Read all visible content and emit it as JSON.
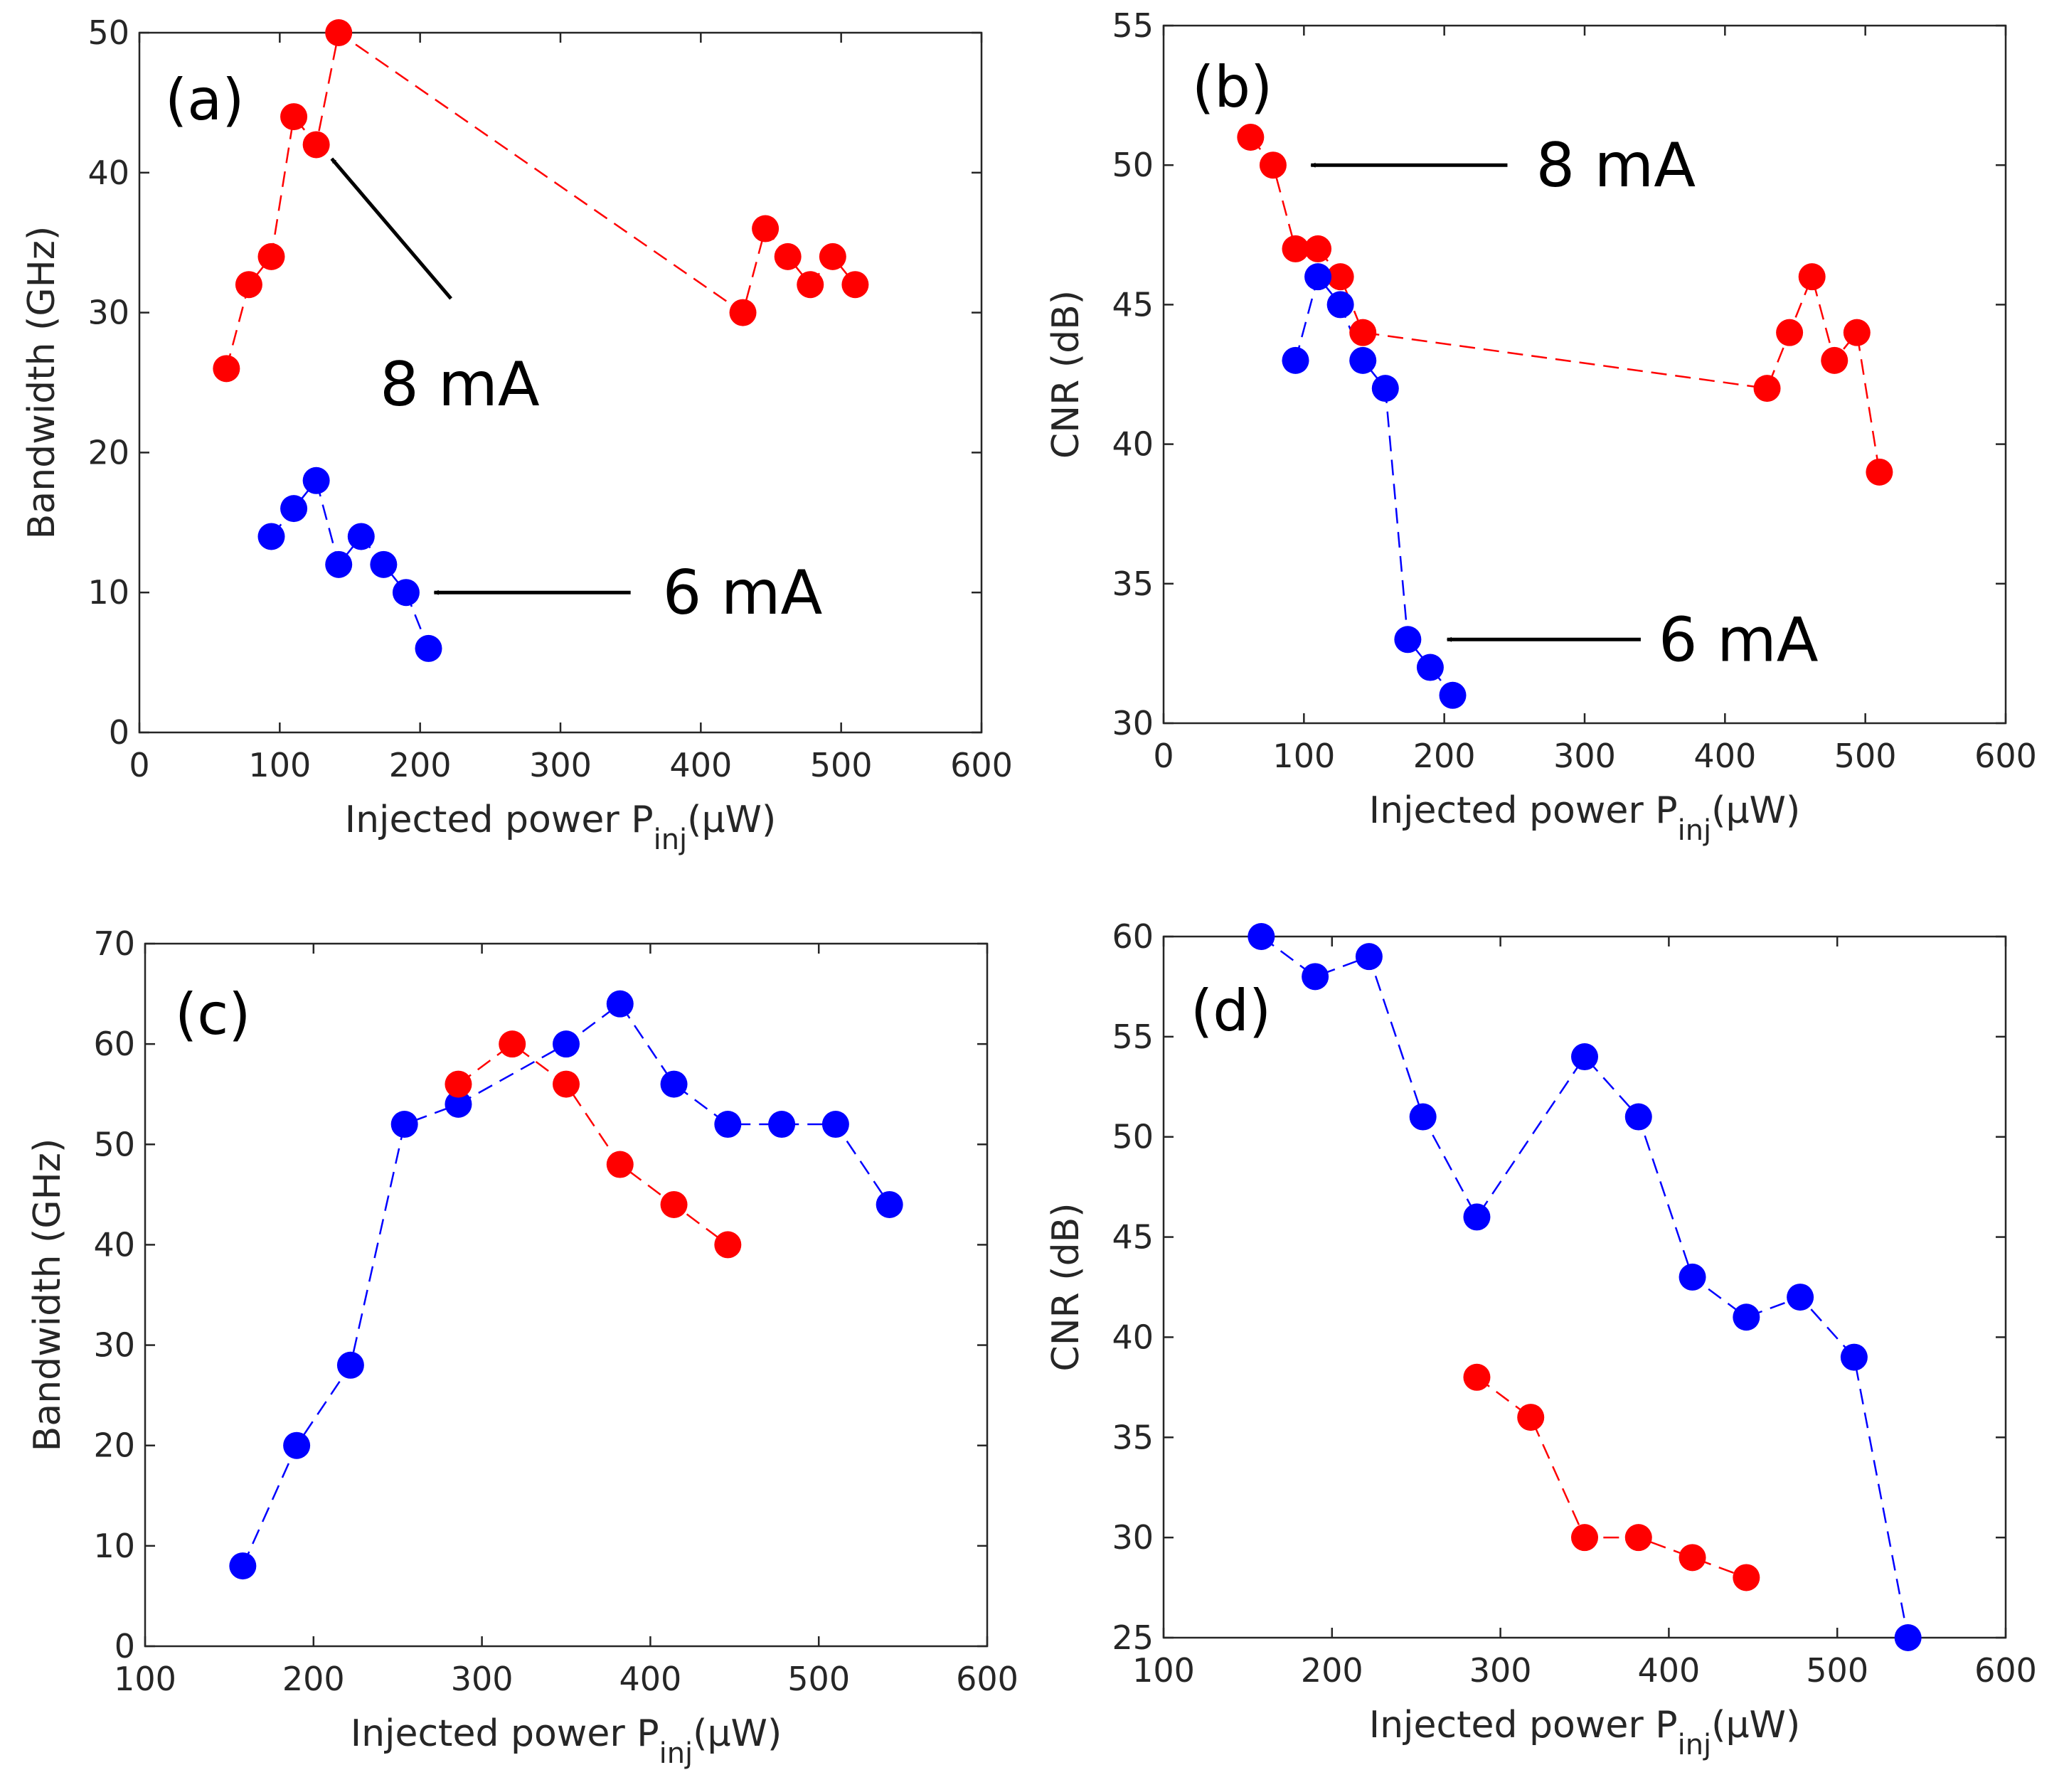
{
  "colors": {
    "red": "#ff0000",
    "blue": "#0000ff",
    "axis": "#262626"
  },
  "chart_data": [
    {
      "id": "a",
      "type": "scatter",
      "panel_label": "(a)",
      "xlabel_main": "Injected power P",
      "xlabel_sub": "inj",
      "xlabel_unit": "(μW)",
      "ylabel": "Bandwidth (GHz)",
      "xlim": [
        0,
        600
      ],
      "ylim": [
        0,
        50
      ],
      "xticks": [
        0,
        100,
        200,
        300,
        400,
        500,
        600
      ],
      "yticks": [
        0,
        10,
        20,
        30,
        40,
        50
      ],
      "series": [
        {
          "name": "8 mA",
          "color": "#ff0000",
          "x": [
            62,
            78,
            94,
            110,
            126,
            142,
            430,
            446,
            462,
            478,
            494,
            510
          ],
          "y": [
            26,
            32,
            34,
            44,
            42,
            50,
            30,
            36,
            34,
            32,
            34,
            32
          ]
        },
        {
          "name": "6 mA",
          "color": "#0000ff",
          "x": [
            94,
            110,
            126,
            142,
            158,
            174,
            190,
            206
          ],
          "y": [
            14,
            16,
            18,
            12,
            14,
            12,
            10,
            6
          ]
        }
      ],
      "annotations": [
        {
          "text": "8 mA",
          "from": [
            222,
            31
          ],
          "to": [
            137,
            41
          ]
        },
        {
          "text": "6 mA",
          "from": [
            350,
            10
          ],
          "to": [
            210,
            10
          ]
        }
      ]
    },
    {
      "id": "b",
      "type": "scatter",
      "panel_label": "(b)",
      "xlabel_main": "Injected power P",
      "xlabel_sub": "inj",
      "xlabel_unit": "(μW)",
      "ylabel": "CNR (dB)",
      "xlim": [
        0,
        600
      ],
      "ylim": [
        30,
        55
      ],
      "xticks": [
        0,
        100,
        200,
        300,
        400,
        500,
        600
      ],
      "yticks": [
        30,
        35,
        40,
        45,
        50,
        55
      ],
      "series": [
        {
          "name": "8 mA",
          "color": "#ff0000",
          "x": [
            62,
            78,
            94,
            110,
            126,
            142,
            430,
            446,
            462,
            478,
            494,
            510
          ],
          "y": [
            51,
            50,
            47,
            47,
            46,
            44,
            42,
            44,
            46,
            43,
            44,
            39
          ]
        },
        {
          "name": "6 mA",
          "color": "#0000ff",
          "x": [
            94,
            110,
            126,
            142,
            158,
            174,
            190,
            206
          ],
          "y": [
            43,
            46,
            45,
            43,
            42,
            33,
            32,
            31
          ]
        }
      ],
      "annotations": [
        {
          "text": "8 mA",
          "from": [
            245,
            50
          ],
          "to": [
            105,
            50
          ]
        },
        {
          "text": "6 mA",
          "from": [
            340,
            33
          ],
          "to": [
            202,
            33
          ]
        }
      ]
    },
    {
      "id": "c",
      "type": "scatter",
      "panel_label": "(c)",
      "xlabel_main": "Injected power P",
      "xlabel_sub": "inj",
      "xlabel_unit": "(μW)",
      "ylabel": "Bandwidth (GHz)",
      "xlim": [
        100,
        600
      ],
      "ylim": [
        0,
        70
      ],
      "xticks": [
        100,
        200,
        300,
        400,
        500,
        600
      ],
      "yticks": [
        0,
        10,
        20,
        30,
        40,
        50,
        60,
        70
      ],
      "series": [
        {
          "name": "blue",
          "color": "#0000ff",
          "x": [
            158,
            190,
            222,
            254,
            286,
            350,
            382,
            414,
            446,
            478,
            510,
            542
          ],
          "y": [
            8,
            20,
            28,
            52,
            54,
            60,
            64,
            56,
            52,
            52,
            52,
            44
          ]
        },
        {
          "name": "red",
          "color": "#ff0000",
          "x": [
            286,
            318,
            350,
            382,
            414,
            446
          ],
          "y": [
            56,
            60,
            56,
            48,
            44,
            40
          ]
        }
      ],
      "annotations": []
    },
    {
      "id": "d",
      "type": "scatter",
      "panel_label": "(d)",
      "xlabel_main": "Injected power P",
      "xlabel_sub": "inj",
      "xlabel_unit": "(μW)",
      "ylabel": "CNR (dB)",
      "xlim": [
        100,
        600
      ],
      "ylim": [
        25,
        60
      ],
      "xticks": [
        100,
        200,
        300,
        400,
        500,
        600
      ],
      "yticks": [
        25,
        30,
        35,
        40,
        45,
        50,
        55,
        60
      ],
      "series": [
        {
          "name": "blue",
          "color": "#0000ff",
          "x": [
            158,
            190,
            222,
            254,
            286,
            350,
            382,
            414,
            446,
            478,
            510,
            542
          ],
          "y": [
            60,
            58,
            59,
            51,
            46,
            54,
            51,
            43,
            41,
            42,
            39,
            25
          ]
        },
        {
          "name": "red",
          "color": "#ff0000",
          "x": [
            286,
            318,
            350,
            382,
            414,
            446
          ],
          "y": [
            38,
            36,
            30,
            30,
            29,
            28
          ]
        }
      ],
      "annotations": []
    }
  ]
}
